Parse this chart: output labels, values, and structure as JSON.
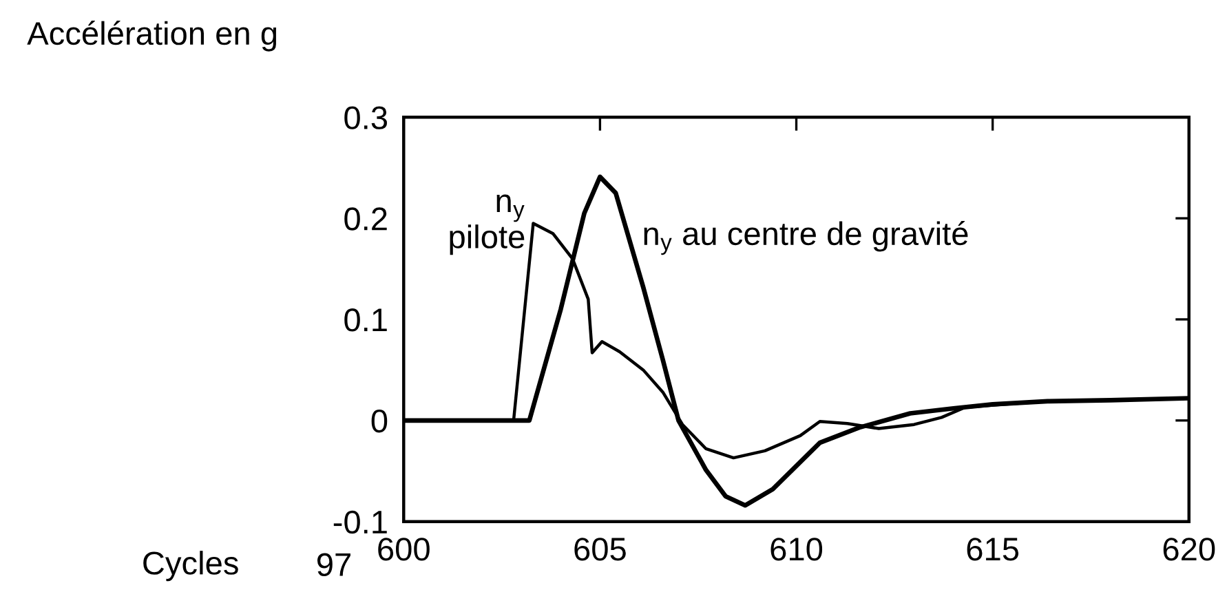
{
  "chart_data": {
    "type": "line",
    "ylabel": "Accélération en g",
    "xlabel": "Cycles",
    "annotations": [
      "97"
    ],
    "xlim": [
      600,
      620
    ],
    "xticks": [
      600,
      605,
      610,
      615,
      620
    ],
    "ylim": [
      -0.1,
      0.3
    ],
    "yticks": [
      0.3,
      0.2,
      0.1,
      0,
      -0.1
    ],
    "grid": false,
    "legend": false,
    "marker": "none",
    "line_style": "solid",
    "series": [
      {
        "name": "n$_{y}$\npilote",
        "color": "#000000",
        "x": [
          600,
          602.8,
          603.3,
          603.8,
          604.3,
          604.7,
          604.8,
          605.05,
          605.5,
          606.1,
          606.6,
          607.1,
          607.7,
          608.4,
          609.2,
          610.1,
          610.6,
          611.3,
          612.1,
          613.0,
          613.7,
          614.3,
          615.3,
          616.4,
          618.0,
          620
        ],
        "values": [
          0,
          0,
          0.195,
          0.185,
          0.16,
          0.12,
          0.067,
          0.078,
          0.068,
          0.05,
          0.028,
          -0.004,
          -0.028,
          -0.037,
          -0.03,
          -0.015,
          -0.001,
          -0.003,
          -0.008,
          -0.004,
          0.003,
          0.013,
          0.016,
          0.019,
          0.02,
          0.022
        ]
      },
      {
        "name": "n$_{y}$ au centre de gravité",
        "color": "#000000",
        "x": [
          600,
          603.2,
          604.0,
          604.6,
          605.0,
          605.4,
          606.1,
          606.6,
          607.0,
          607.7,
          608.2,
          608.7,
          609.4,
          610.0,
          610.6,
          611.6,
          612.9,
          614.0,
          615.0,
          616.4,
          618.0,
          620
        ],
        "values": [
          0,
          0,
          0.11,
          0.205,
          0.241,
          0.225,
          0.132,
          0.06,
          0,
          -0.049,
          -0.075,
          -0.084,
          -0.068,
          -0.045,
          -0.022,
          -0.007,
          0.007,
          0.012,
          0.016,
          0.019,
          0.02,
          0.022
        ]
      }
    ]
  }
}
